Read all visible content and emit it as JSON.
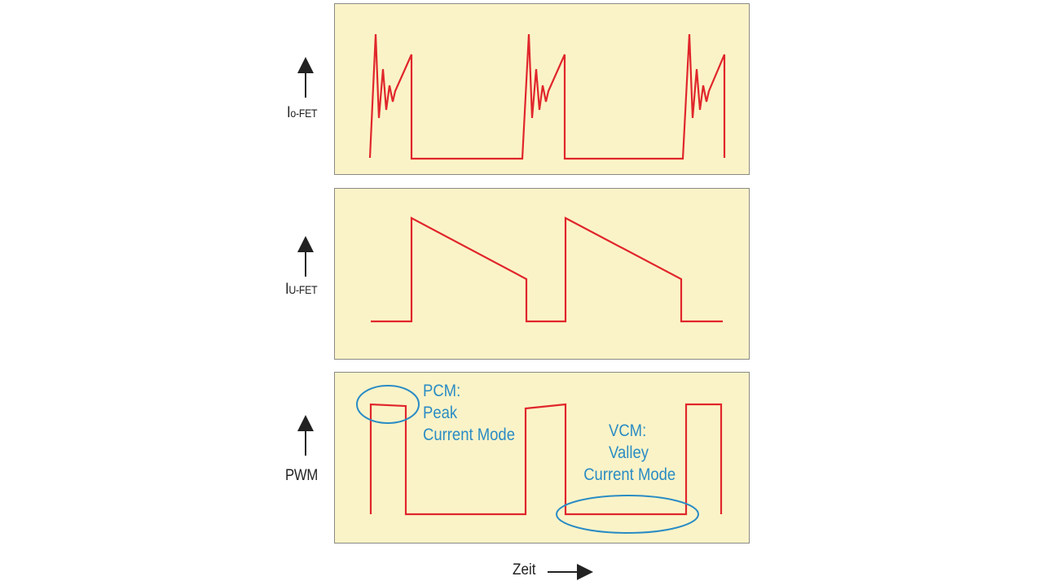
{
  "labels": {
    "o_fet_main": "I",
    "o_fet_sub": "o-FET",
    "u_fet_main": "I",
    "u_fet_sub": "U-FET",
    "pwm": "PWM",
    "time": "Zeit"
  },
  "annotations": {
    "pcm": [
      "PCM:",
      "Peak",
      "Current Mode"
    ],
    "vcm": [
      "VCM:",
      "Valley",
      "Current Mode"
    ]
  },
  "colors": {
    "panel_bg": "#fbf3c8",
    "waveform": "#e0262b",
    "annotation": "#2a8cc4"
  }
}
